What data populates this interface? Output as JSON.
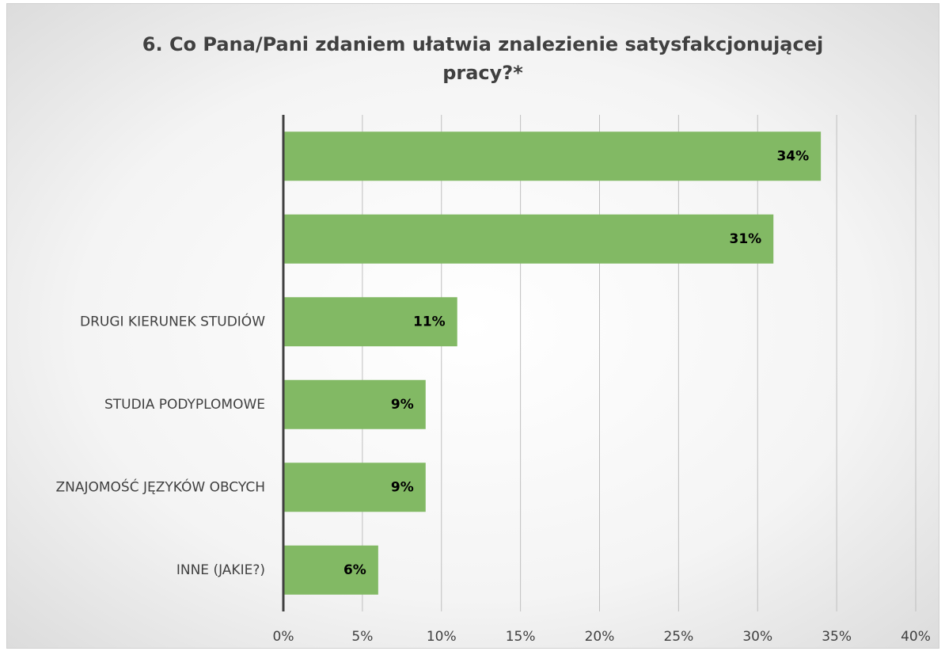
{
  "chart_data": {
    "type": "bar",
    "orientation": "horizontal",
    "title": "6. Co Pana/Pani zdaniem ułatwia znalezienie satysfakcjonującej pracy?*",
    "categories": [
      null,
      null,
      "DRUGI KIERUNEK STUDIÓW",
      "STUDIA PODYPLOMOWE",
      "ZNAJOMOŚĆ JĘZYKÓW OBCYCH",
      "INNE (JAKIE?)"
    ],
    "values": [
      34,
      31,
      11,
      9,
      9,
      6
    ],
    "value_labels": [
      "34%",
      "31%",
      "11%",
      "9%",
      "9%",
      "6%"
    ],
    "color": "#82b964",
    "xlim": [
      0,
      40
    ],
    "xticks": [
      {
        "value": 0,
        "label": "0%"
      },
      {
        "value": 5,
        "label": "5%"
      },
      {
        "value": 10,
        "label": "10%"
      },
      {
        "value": 15,
        "label": "15%"
      },
      {
        "value": 20,
        "label": "20%"
      },
      {
        "value": 25,
        "label": "25%"
      },
      {
        "value": 30,
        "label": "30%"
      },
      {
        "value": 35,
        "label": "35%"
      },
      {
        "value": 40,
        "label": "40%"
      }
    ],
    "grid": true
  }
}
